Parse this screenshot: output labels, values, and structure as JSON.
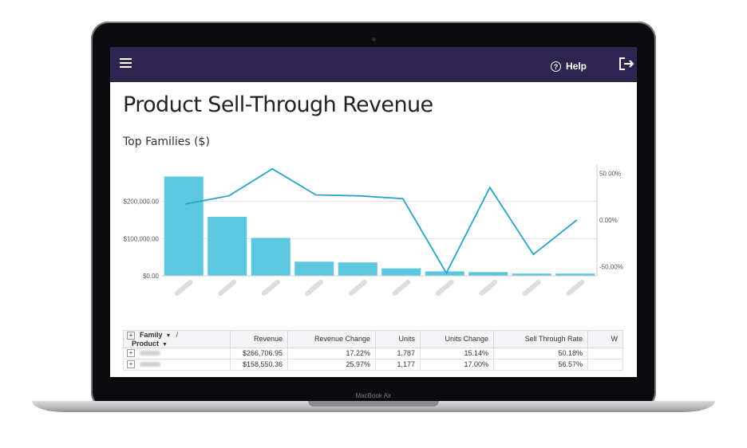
{
  "device": {
    "brand": "MacBook Air"
  },
  "header": {
    "help_label": "Help"
  },
  "page": {
    "title": "Product Sell-Through Revenue",
    "section_title": "Top Families ($)"
  },
  "colors": {
    "header_bg": "#2d2550",
    "bar": "#5cc8e0",
    "line": "#2aa3c7"
  },
  "chart_data": {
    "type": "bar+line",
    "series": [
      {
        "values": [
          266706.95,
          158550.36,
          102000,
          38000,
          36000,
          20000,
          12000,
          10000,
          6000,
          6000
        ]
      },
      {
        "values": [
          17.22,
          25.97,
          55,
          27,
          26,
          23,
          -57,
          35,
          -37,
          0
        ]
      }
    ],
    "left_axis": {
      "ticks": [
        "$0.00",
        "$100,000.00",
        "$200,000.00"
      ],
      "range": [
        0,
        300000
      ]
    },
    "right_axis": {
      "ticks": [
        "-50.00%",
        "0.00%",
        "50.00%"
      ],
      "range": [
        -60,
        60
      ]
    },
    "grid": true
  },
  "table": {
    "group_header": {
      "family": "Family",
      "separator": "/",
      "product": "Product"
    },
    "columns": [
      "Revenue",
      "Revenue Change",
      "Units",
      "Units Change",
      "Sell Through Rate",
      "W"
    ],
    "rows": [
      {
        "revenue": "$266,706.95",
        "revenue_change": "17.22%",
        "units": "1,787",
        "units_change": "15.14%",
        "sell_through": "50.18%"
      },
      {
        "revenue": "$158,550.36",
        "revenue_change": "25.97%",
        "units": "1,177",
        "units_change": "17.00%",
        "sell_through": "56.57%"
      }
    ]
  }
}
